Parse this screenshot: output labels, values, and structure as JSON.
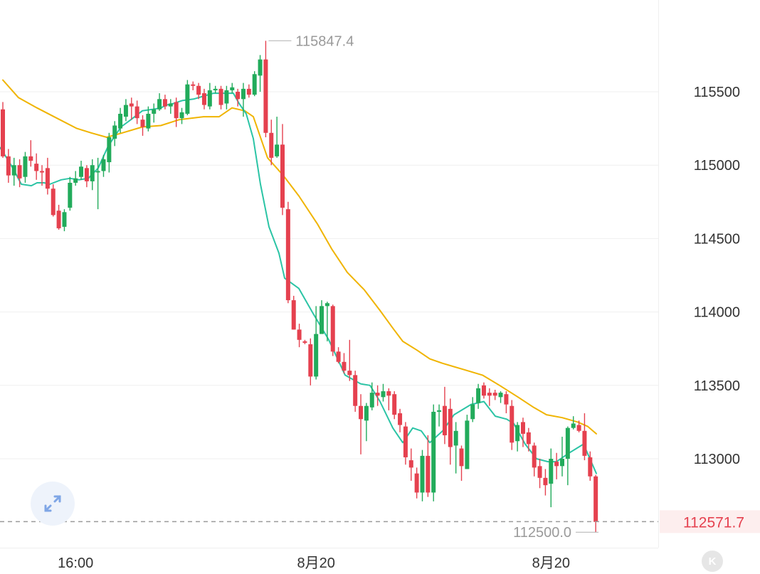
{
  "chart_data": {
    "type": "candlestick",
    "colors": {
      "up": "#22ab5b",
      "down": "#e5414f",
      "ma_fast": "#2bc4a5",
      "ma_slow": "#f0b400",
      "last_price": "#e5414f",
      "grid": "#efefef"
    },
    "y_axis": {
      "ticks": [
        115500,
        115000,
        114500,
        114000,
        113500,
        113000
      ],
      "tick_labels": [
        "115500",
        "115000",
        "114500",
        "114000",
        "113500",
        "113000"
      ],
      "range": [
        112350,
        116150
      ]
    },
    "x_axis": {
      "labels": [
        "16:00",
        "8月20",
        "8月20"
      ]
    },
    "annotations": {
      "high_label": "115847.4",
      "high_value": 115847.4,
      "low_label": "112500.0",
      "low_value": 112500.0,
      "last_price_label": "112571.7",
      "last_price_value": 112571.7
    },
    "candles": [
      [
        115380,
        115060,
        115430,
        115050
      ],
      [
        115060,
        114930,
        115110,
        114880
      ],
      [
        114930,
        115000,
        115050,
        114860
      ],
      [
        115000,
        114910,
        115040,
        114850
      ],
      [
        114920,
        115060,
        115090,
        114880
      ],
      [
        115060,
        115030,
        115170,
        114990
      ],
      [
        115010,
        114960,
        115080,
        114900
      ],
      [
        114960,
        114950,
        115000,
        114860
      ],
      [
        114980,
        114840,
        115050,
        114800
      ],
      [
        114840,
        114660,
        114870,
        114650
      ],
      [
        114690,
        114570,
        114730,
        114560
      ],
      [
        114580,
        114680,
        114700,
        114550
      ],
      [
        114710,
        114880,
        114920,
        114690
      ],
      [
        114880,
        114910,
        114960,
        114860
      ],
      [
        114920,
        114990,
        115030,
        114900
      ],
      [
        114980,
        114890,
        115000,
        114850
      ],
      [
        114890,
        115000,
        115040,
        114830
      ],
      [
        114960,
        114960,
        115050,
        114700
      ],
      [
        114960,
        115040,
        115070,
        114920
      ],
      [
        115020,
        115190,
        115220,
        114950
      ],
      [
        115180,
        115270,
        115300,
        115130
      ],
      [
        115250,
        115350,
        115390,
        115220
      ],
      [
        115330,
        115410,
        115450,
        115300
      ],
      [
        115420,
        115400,
        115460,
        115310
      ],
      [
        115400,
        115320,
        115440,
        115280
      ],
      [
        115310,
        115260,
        115340,
        115200
      ],
      [
        115250,
        115350,
        115400,
        115230
      ],
      [
        115350,
        115380,
        115420,
        115290
      ],
      [
        115380,
        115450,
        115490,
        115370
      ],
      [
        115450,
        115400,
        115480,
        115380
      ],
      [
        115400,
        115420,
        115450,
        115350
      ],
      [
        115430,
        115320,
        115460,
        115260
      ],
      [
        115320,
        115360,
        115390,
        115280
      ],
      [
        115350,
        115550,
        115580,
        115340
      ],
      [
        115550,
        115540,
        115570,
        115510
      ],
      [
        115540,
        115480,
        115560,
        115450
      ],
      [
        115490,
        115410,
        115520,
        115380
      ],
      [
        115400,
        115510,
        115560,
        115380
      ],
      [
        115510,
        115520,
        115540,
        115490
      ],
      [
        115520,
        115410,
        115540,
        115380
      ],
      [
        115420,
        115510,
        115540,
        115380
      ],
      [
        115510,
        115530,
        115560,
        115490
      ],
      [
        115500,
        115450,
        115520,
        115400
      ],
      [
        115450,
        115520,
        115560,
        115330
      ],
      [
        115520,
        115480,
        115550,
        115460
      ],
      [
        115480,
        115620,
        115640,
        115470
      ],
      [
        115610,
        115720,
        115750,
        115500
      ],
      [
        115720,
        115220,
        115847,
        115190
      ],
      [
        115220,
        115050,
        115310,
        115000
      ],
      [
        115060,
        115140,
        115330,
        115050
      ],
      [
        115140,
        114710,
        115280,
        114660
      ],
      [
        114700,
        114080,
        114750,
        114060
      ],
      [
        114080,
        113880,
        114110,
        113880
      ],
      [
        113880,
        113810,
        113920,
        113760
      ],
      [
        113800,
        113790,
        113810,
        113780
      ],
      [
        113780,
        113560,
        113820,
        113500
      ],
      [
        113560,
        113850,
        114040,
        113540
      ],
      [
        113850,
        114040,
        114080,
        113870
      ],
      [
        114040,
        114060,
        114070,
        113800
      ],
      [
        114040,
        113730,
        114050,
        113700
      ],
      [
        113730,
        113660,
        113760,
        113650
      ],
      [
        113660,
        113600,
        113720,
        113580
      ],
      [
        113600,
        113570,
        113810,
        113530
      ],
      [
        113570,
        113360,
        113600,
        113320
      ],
      [
        113360,
        113270,
        113440,
        113030
      ],
      [
        113260,
        113360,
        113380,
        113120
      ],
      [
        113350,
        113450,
        113520,
        113330
      ],
      [
        113450,
        113430,
        113500,
        113360
      ],
      [
        113420,
        113460,
        113510,
        113390
      ],
      [
        113460,
        113430,
        113480,
        113330
      ],
      [
        113440,
        113300,
        113460,
        113270
      ],
      [
        113310,
        113230,
        113340,
        113180
      ],
      [
        113220,
        113010,
        113250,
        112960
      ],
      [
        112990,
        112940,
        113070,
        112850
      ],
      [
        112900,
        112770,
        112940,
        112730
      ],
      [
        112770,
        113020,
        113060,
        112710
      ],
      [
        113020,
        112770,
        113160,
        112740
      ],
      [
        112770,
        113320,
        113370,
        112710
      ],
      [
        113320,
        113330,
        113370,
        113220
      ],
      [
        113360,
        113160,
        113490,
        113100
      ],
      [
        113340,
        113080,
        113410,
        112960
      ],
      [
        113090,
        113190,
        113250,
        112900
      ],
      [
        113070,
        112950,
        113090,
        112850
      ],
      [
        112930,
        113260,
        113300,
        112930
      ],
      [
        113270,
        113370,
        113420,
        113250
      ],
      [
        113380,
        113480,
        113510,
        113340
      ],
      [
        113500,
        113430,
        113520,
        113410
      ],
      [
        113450,
        113430,
        113480,
        113360
      ],
      [
        113450,
        113430,
        113470,
        113400
      ],
      [
        113420,
        113450,
        113460,
        113380
      ],
      [
        113440,
        113370,
        113460,
        113310
      ],
      [
        113360,
        113110,
        113400,
        113060
      ],
      [
        113120,
        113230,
        113250,
        113050
      ],
      [
        113250,
        113170,
        113280,
        113080
      ],
      [
        113180,
        113100,
        113210,
        113050
      ],
      [
        113090,
        112940,
        113110,
        112880
      ],
      [
        112950,
        112870,
        113000,
        112800
      ],
      [
        112870,
        112820,
        112930,
        112750
      ],
      [
        112830,
        113000,
        113070,
        112670
      ],
      [
        112980,
        112950,
        113040,
        112860
      ],
      [
        112950,
        113000,
        113150,
        112880
      ],
      [
        113000,
        113210,
        113220,
        112820
      ],
      [
        113210,
        113240,
        113290,
        113200
      ],
      [
        113230,
        113190,
        113260,
        113180
      ],
      [
        113190,
        113020,
        113310,
        112990
      ],
      [
        113010,
        112880,
        113050,
        112850
      ],
      [
        112880,
        112570,
        112890,
        112500
      ]
    ],
    "ma_fast": [
      [
        0,
        115120
      ],
      [
        8,
        115060
      ],
      [
        18,
        114980
      ],
      [
        30,
        114870
      ],
      [
        44,
        114860
      ],
      [
        52,
        114880
      ],
      [
        62,
        114880
      ],
      [
        70,
        114870
      ],
      [
        86,
        114900
      ],
      [
        98,
        114910
      ],
      [
        111,
        114900
      ],
      [
        124,
        114910
      ],
      [
        138,
        114980
      ],
      [
        152,
        115130
      ],
      [
        170,
        115260
      ],
      [
        184,
        115310
      ],
      [
        200,
        115370
      ],
      [
        214,
        115380
      ],
      [
        226,
        115390
      ],
      [
        234,
        115410
      ],
      [
        244,
        115420
      ],
      [
        256,
        115440
      ],
      [
        272,
        115450
      ],
      [
        286,
        115470
      ],
      [
        300,
        115490
      ],
      [
        316,
        115490
      ],
      [
        328,
        115490
      ],
      [
        336,
        115420
      ],
      [
        346,
        115350
      ],
      [
        356,
        115180
      ],
      [
        366,
        114870
      ],
      [
        378,
        114580
      ],
      [
        392,
        114400
      ],
      [
        400,
        114230
      ],
      [
        420,
        114160
      ],
      [
        440,
        113990
      ],
      [
        462,
        113810
      ],
      [
        485,
        113570
      ],
      [
        507,
        113510
      ],
      [
        520,
        113500
      ],
      [
        534,
        113390
      ],
      [
        552,
        113210
      ],
      [
        566,
        113110
      ],
      [
        580,
        113210
      ],
      [
        592,
        113190
      ],
      [
        604,
        113110
      ],
      [
        622,
        113190
      ],
      [
        638,
        113300
      ],
      [
        662,
        113370
      ],
      [
        680,
        113390
      ],
      [
        696,
        113290
      ],
      [
        712,
        113270
      ],
      [
        722,
        113240
      ],
      [
        738,
        113100
      ],
      [
        754,
        113000
      ],
      [
        770,
        112980
      ],
      [
        782,
        112980
      ],
      [
        800,
        113040
      ],
      [
        820,
        113100
      ],
      [
        838,
        112900
      ]
    ],
    "ma_slow": [
      [
        4,
        115580
      ],
      [
        26,
        115460
      ],
      [
        52,
        115390
      ],
      [
        80,
        115320
      ],
      [
        108,
        115250
      ],
      [
        128,
        115220
      ],
      [
        150,
        115190
      ],
      [
        172,
        115220
      ],
      [
        200,
        115260
      ],
      [
        226,
        115270
      ],
      [
        252,
        115310
      ],
      [
        286,
        115330
      ],
      [
        308,
        115330
      ],
      [
        326,
        115390
      ],
      [
        344,
        115370
      ],
      [
        356,
        115330
      ],
      [
        376,
        115050
      ],
      [
        398,
        114930
      ],
      [
        420,
        114790
      ],
      [
        446,
        114600
      ],
      [
        466,
        114430
      ],
      [
        488,
        114270
      ],
      [
        512,
        114150
      ],
      [
        534,
        114010
      ],
      [
        552,
        113890
      ],
      [
        566,
        113800
      ],
      [
        586,
        113740
      ],
      [
        604,
        113680
      ],
      [
        622,
        113650
      ],
      [
        650,
        113610
      ],
      [
        678,
        113570
      ],
      [
        702,
        113500
      ],
      [
        728,
        113420
      ],
      [
        750,
        113350
      ],
      [
        768,
        113300
      ],
      [
        790,
        113280
      ],
      [
        812,
        113250
      ],
      [
        826,
        113220
      ],
      [
        838,
        113170
      ]
    ]
  }
}
